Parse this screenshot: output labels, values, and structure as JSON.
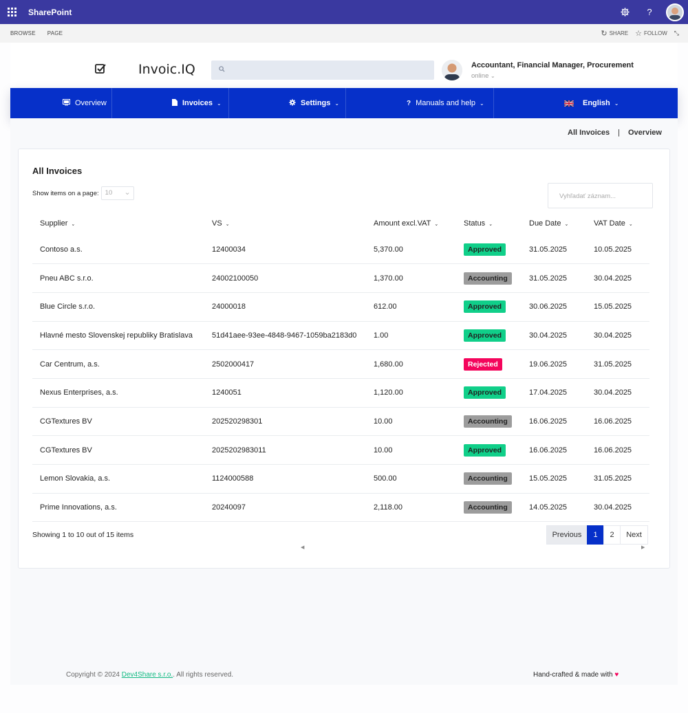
{
  "suitebar": {
    "app_title": "SharePoint",
    "icons": [
      "app-launcher-icon",
      "gear-icon",
      "help-icon",
      "avatar"
    ]
  },
  "ribbon": {
    "tabs": [
      "BROWSE",
      "PAGE"
    ],
    "share_label": "SHARE",
    "follow_label": "FOLLOW"
  },
  "header": {
    "brand": "Invoic.IQ",
    "search_placeholder": "",
    "user_roles": "Accountant, Financial Manager, Procurement",
    "user_status": "online"
  },
  "nav": {
    "items": [
      {
        "label": "Overview",
        "icon": "monitor-icon"
      },
      {
        "label": "Invoices",
        "icon": "file-icon"
      },
      {
        "label": "Settings",
        "icon": "gear-icon"
      },
      {
        "label": "Manuals and help",
        "icon": "question-icon"
      },
      {
        "label": "English",
        "icon": "uk-flag-icon"
      }
    ]
  },
  "breadcrumbs": {
    "first": "All Invoices",
    "separator": "|",
    "second": "Overview"
  },
  "card": {
    "title": "All Invoices",
    "page_size_label": "Show items on a page:",
    "page_size_value": "10",
    "filter_placeholder": "Vyhľadať záznam..."
  },
  "table": {
    "columns": [
      "Supplier",
      "VS",
      "Amount excl.VAT",
      "Status",
      "Due Date",
      "VAT Date"
    ],
    "rows": [
      {
        "supplier": "Contoso a.s.",
        "vs": "12400034",
        "amount": "5,370.00",
        "status": "Approved",
        "due": "31.05.2025",
        "vat": "10.05.2025"
      },
      {
        "supplier": "Pneu ABC s.r.o.",
        "vs": "24002100050",
        "amount": "1,370.00",
        "status": "Accounting",
        "due": "31.05.2025",
        "vat": "30.04.2025"
      },
      {
        "supplier": "Blue Circle s.r.o.",
        "vs": "24000018",
        "amount": "612.00",
        "status": "Approved",
        "due": "30.06.2025",
        "vat": "15.05.2025"
      },
      {
        "supplier": "Hlavné mesto Slovenskej republiky Bratislava",
        "vs": "51d41aee-93ee-4848-9467-1059ba2183d0",
        "amount": "1.00",
        "status": "Approved",
        "due": "30.04.2025",
        "vat": "30.04.2025"
      },
      {
        "supplier": "Car Centrum, a.s.",
        "vs": "2502000417",
        "amount": "1,680.00",
        "status": "Rejected",
        "due": "19.06.2025",
        "vat": "31.05.2025"
      },
      {
        "supplier": "Nexus Enterprises, a.s.",
        "vs": "1240051",
        "amount": "1,120.00",
        "status": "Approved",
        "due": "17.04.2025",
        "vat": "30.04.2025"
      },
      {
        "supplier": "CGTextures BV",
        "vs": "202520298301",
        "amount": "10.00",
        "status": "Accounting",
        "due": "16.06.2025",
        "vat": "16.06.2025"
      },
      {
        "supplier": "CGTextures BV",
        "vs": "2025202983011",
        "amount": "10.00",
        "status": "Approved",
        "due": "16.06.2025",
        "vat": "16.06.2025"
      },
      {
        "supplier": "Lemon Slovakia, a.s.",
        "vs": "1124000588",
        "amount": "500.00",
        "status": "Accounting",
        "due": "15.05.2025",
        "vat": "31.05.2025"
      },
      {
        "supplier": "Prime Innovations, a.s.",
        "vs": "20240097",
        "amount": "2,118.00",
        "status": "Accounting",
        "due": "14.05.2025",
        "vat": "30.04.2025"
      }
    ]
  },
  "pagination": {
    "showing": "Showing 1 to 10 out of 15 items",
    "previous": "Previous",
    "pages": [
      "1",
      "2"
    ],
    "next": "Next"
  },
  "footer": {
    "copyright_prefix": "Copyright © 2024 ",
    "company_link": "Dev4Share s.r.o.",
    "copyright_suffix": ". All rights reserved.",
    "made_with": "Hand-crafted & made with",
    "heart": "♥"
  },
  "colors": {
    "suitebar": "#3a39a0",
    "nav": "#0630c9",
    "approved": "#10cf89",
    "accounting": "#9c9c9c",
    "rejected": "#f4055c"
  }
}
